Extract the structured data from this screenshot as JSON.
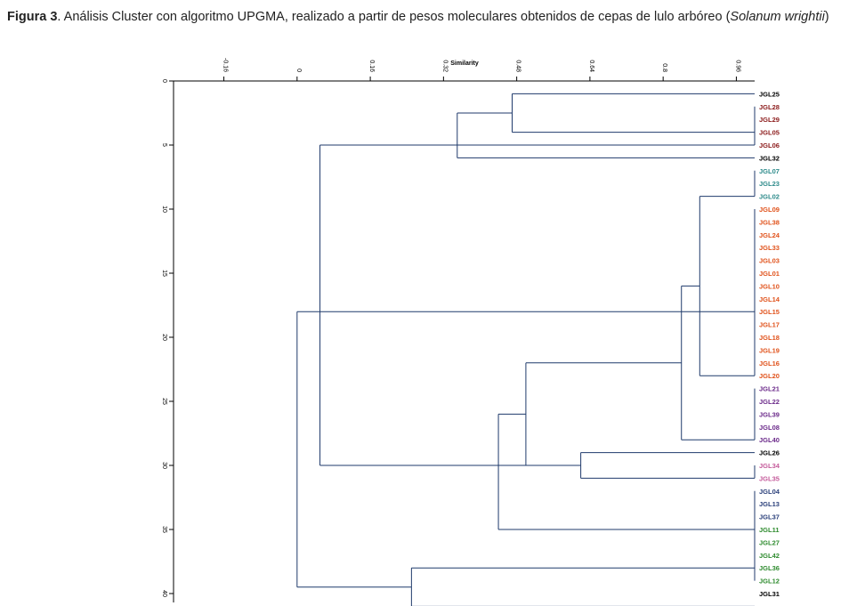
{
  "caption": {
    "label": "Figura 3",
    "text": ". Análisis Cluster con algoritmo UPGMA, realizado a partir de pesos moleculares obtenidos de cepas de lulo arbóreo (",
    "species": "Solanum wrightii",
    "close": ")"
  },
  "chart_data": {
    "type": "dendrogram",
    "method": "UPGMA",
    "xlabel": "Similarity",
    "x_ticks": [
      "-0.16",
      "0",
      "0.16",
      "0.32",
      "0.48",
      "0.64",
      "0.8",
      "0.96"
    ],
    "y_ticks": [
      "0",
      "5",
      "10",
      "15",
      "20",
      "25",
      "30",
      "35",
      "40"
    ],
    "leaves": [
      {
        "name": "JGL25",
        "color": "#000000"
      },
      {
        "name": "JGL28",
        "color": "#8b1a1a"
      },
      {
        "name": "JGL29",
        "color": "#8b1a1a"
      },
      {
        "name": "JGL05",
        "color": "#8b1a1a"
      },
      {
        "name": "JGL06",
        "color": "#8b1a1a"
      },
      {
        "name": "JGL32",
        "color": "#000000"
      },
      {
        "name": "JGL07",
        "color": "#2e8b8b"
      },
      {
        "name": "JGL23",
        "color": "#2e8b8b"
      },
      {
        "name": "JGL02",
        "color": "#2e8b8b"
      },
      {
        "name": "JGL09",
        "color": "#e0521b"
      },
      {
        "name": "JGL38",
        "color": "#e0521b"
      },
      {
        "name": "JGL24",
        "color": "#e0521b"
      },
      {
        "name": "JGL33",
        "color": "#e0521b"
      },
      {
        "name": "JGL03",
        "color": "#e0521b"
      },
      {
        "name": "JGL01",
        "color": "#e0521b"
      },
      {
        "name": "JGL10",
        "color": "#e0521b"
      },
      {
        "name": "JGL14",
        "color": "#e0521b"
      },
      {
        "name": "JGL15",
        "color": "#e0521b"
      },
      {
        "name": "JGL17",
        "color": "#e0521b"
      },
      {
        "name": "JGL18",
        "color": "#e0521b"
      },
      {
        "name": "JGL19",
        "color": "#e0521b"
      },
      {
        "name": "JGL16",
        "color": "#e0521b"
      },
      {
        "name": "JGL20",
        "color": "#e0521b"
      },
      {
        "name": "JGL21",
        "color": "#6b2a8a"
      },
      {
        "name": "JGL22",
        "color": "#6b2a8a"
      },
      {
        "name": "JGL39",
        "color": "#6b2a8a"
      },
      {
        "name": "JGL08",
        "color": "#6b2a8a"
      },
      {
        "name": "JGL40",
        "color": "#6b2a8a"
      },
      {
        "name": "JGL26",
        "color": "#000000"
      },
      {
        "name": "JGL34",
        "color": "#c45a9a"
      },
      {
        "name": "JGL35",
        "color": "#c45a9a"
      },
      {
        "name": "JGL04",
        "color": "#2a3f7a"
      },
      {
        "name": "JGL13",
        "color": "#2a3f7a"
      },
      {
        "name": "JGL37",
        "color": "#2a3f7a"
      },
      {
        "name": "JGL11",
        "color": "#2e8b2e"
      },
      {
        "name": "JGL27",
        "color": "#2e8b2e"
      },
      {
        "name": "JGL42",
        "color": "#2e8b2e"
      },
      {
        "name": "JGL36",
        "color": "#2e8b2e"
      },
      {
        "name": "JGL12",
        "color": "#2e8b2e"
      },
      {
        "name": "JGL31",
        "color": "#000000"
      }
    ],
    "merges": [
      {
        "sim": 1.0,
        "a": 1,
        "b": 4
      },
      {
        "sim": 0.47,
        "a": 0,
        "b": 3
      },
      {
        "sim": 0.35,
        "a": 1.5,
        "b": 5
      },
      {
        "sim": 1.0,
        "a": 6,
        "b": 8
      },
      {
        "sim": 1.0,
        "a": 9,
        "b": 22
      },
      {
        "sim": 0.88,
        "a": 8,
        "b": 22
      },
      {
        "sim": 1.0,
        "a": 23,
        "b": 27
      },
      {
        "sim": 0.84,
        "a": 15,
        "b": 27
      },
      {
        "sim": 1.0,
        "a": 29,
        "b": 30
      },
      {
        "sim": 0.62,
        "a": 28,
        "b": 30
      },
      {
        "sim": 0.5,
        "a": 21,
        "b": 29
      },
      {
        "sim": 1.0,
        "a": 31,
        "b": 38
      },
      {
        "sim": 0.44,
        "a": 25,
        "b": 34
      },
      {
        "sim": 0.05,
        "a": 4,
        "b": 29
      },
      {
        "sim": 0.25,
        "a": 37,
        "b": 40
      },
      {
        "sim": 0.0,
        "a": 17,
        "b": 38.5
      }
    ]
  }
}
